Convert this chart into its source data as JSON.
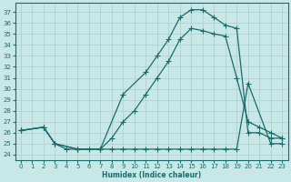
{
  "xlabel": "Humidex (Indice chaleur)",
  "bg_color": "#c8e8e8",
  "line_color": "#1a6b6b",
  "grid_color": "#b0cccc",
  "ylim": [
    23.5,
    37.8
  ],
  "xlim": [
    -0.5,
    23.5
  ],
  "yticks": [
    24,
    25,
    26,
    27,
    28,
    29,
    30,
    31,
    32,
    33,
    34,
    35,
    36,
    37
  ],
  "xticks": [
    0,
    1,
    2,
    3,
    4,
    5,
    6,
    7,
    8,
    9,
    10,
    11,
    12,
    13,
    14,
    15,
    16,
    17,
    18,
    19,
    20,
    21,
    22,
    23
  ],
  "curve1_x": [
    0,
    2,
    3,
    4,
    5,
    6,
    7,
    9,
    11,
    12,
    13,
    14,
    15,
    16,
    17,
    18,
    19,
    20,
    21,
    22,
    23
  ],
  "curve1_y": [
    26.2,
    26.5,
    25.0,
    24.5,
    24.5,
    24.5,
    24.5,
    29.5,
    31.5,
    33.0,
    34.5,
    36.5,
    37.2,
    37.2,
    36.5,
    35.8,
    35.5,
    26.0,
    26.0,
    25.5,
    25.5
  ],
  "curve2_x": [
    0,
    2,
    3,
    5,
    7,
    8,
    9,
    10,
    11,
    12,
    13,
    14,
    15,
    16,
    17,
    18,
    19,
    20,
    21,
    22,
    23
  ],
  "curve2_y": [
    26.2,
    26.5,
    25.0,
    24.5,
    24.5,
    25.5,
    27.0,
    28.0,
    29.5,
    31.0,
    32.5,
    34.5,
    35.5,
    35.3,
    35.0,
    34.8,
    31.0,
    27.0,
    26.5,
    26.0,
    25.5
  ],
  "curve3_x": [
    0,
    2,
    3,
    5,
    7,
    8,
    9,
    10,
    11,
    12,
    13,
    14,
    15,
    16,
    17,
    18,
    19,
    20,
    22,
    23
  ],
  "curve3_y": [
    26.2,
    26.5,
    25.0,
    24.5,
    24.5,
    24.5,
    24.5,
    24.5,
    24.5,
    24.5,
    24.5,
    24.5,
    24.5,
    24.5,
    24.5,
    24.5,
    24.5,
    30.5,
    25.0,
    25.0
  ]
}
